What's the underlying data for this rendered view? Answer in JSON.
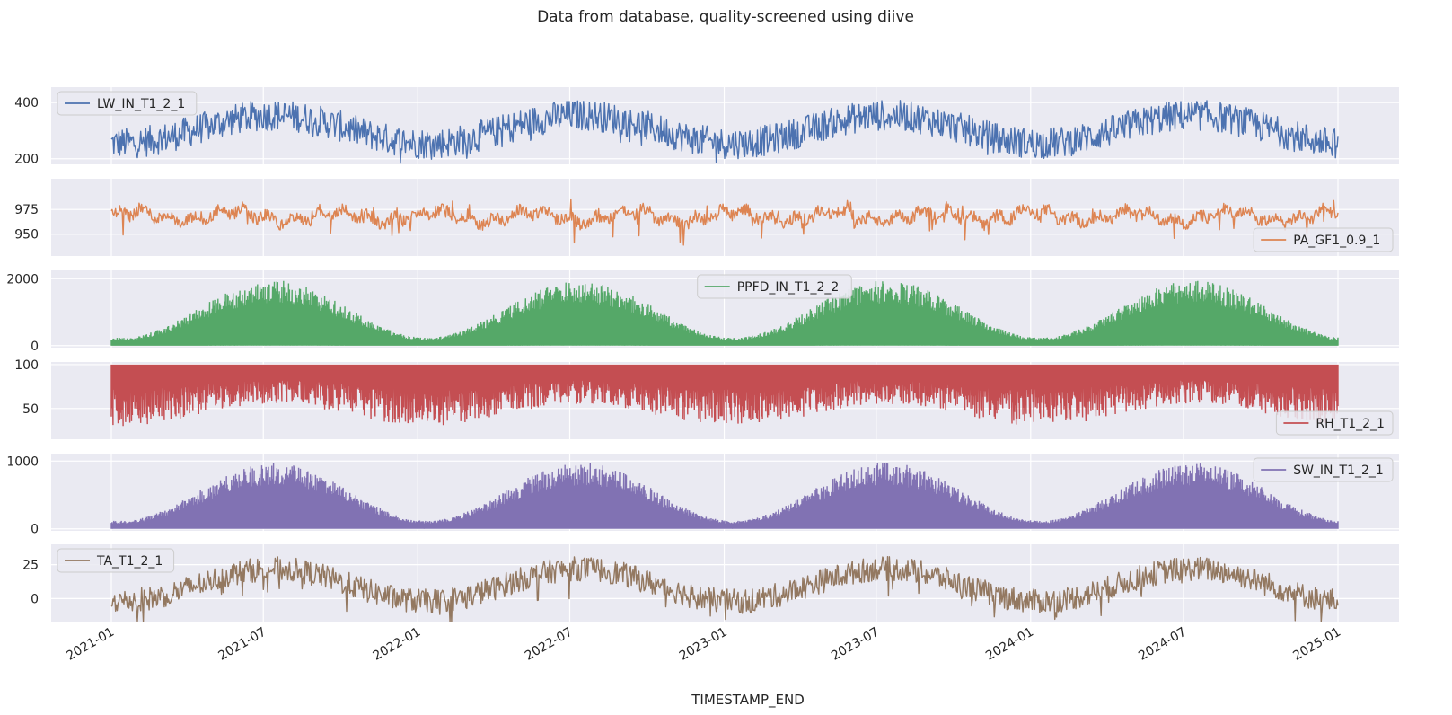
{
  "figure": {
    "title": "Data from database, quality-screened using diive",
    "xlabel": "TIMESTAMP_END",
    "x_ticks": [
      "2021-01",
      "2021-07",
      "2022-01",
      "2022-07",
      "2023-01",
      "2023-07",
      "2024-01",
      "2024-07",
      "2025-01"
    ],
    "background": "#eaeaf2",
    "grid_color": "#ffffff"
  },
  "chart_data": [
    {
      "type": "line",
      "series": [
        {
          "name": "LW_IN_T1_2_1",
          "color": "#4c72b0",
          "pattern": "seasonal_noisy",
          "mean": 305,
          "amplitude": 50,
          "noise": 55,
          "spikes_down": 25
        }
      ],
      "x_range": [
        "2021-01-01",
        "2025-01-01"
      ],
      "ylim": [
        180,
        455
      ],
      "yticks": [
        200,
        400
      ],
      "ytick_labels": [
        "200",
        "400"
      ],
      "legend": "upper left",
      "grid": true
    },
    {
      "type": "line",
      "series": [
        {
          "name": "PA_GF1_0.9_1",
          "color": "#dd8452",
          "pattern": "pressure",
          "mean": 968,
          "amplitude": 0,
          "noise": 6,
          "spikes_down": 20
        }
      ],
      "x_range": [
        "2021-01-01",
        "2025-01-01"
      ],
      "ylim": [
        928,
        1006
      ],
      "yticks": [
        950,
        975
      ],
      "ytick_labels": [
        "950",
        "975"
      ],
      "legend": "lower right",
      "grid": true
    },
    {
      "type": "line",
      "series": [
        {
          "name": "PPFD_IN_T1_2_2",
          "color": "#55a868",
          "pattern": "solar_fill",
          "mean": 0,
          "amplitude": 1950,
          "noise": 0.35,
          "spikes_down": 0
        }
      ],
      "x_range": [
        "2021-01-01",
        "2025-01-01"
      ],
      "ylim": [
        -60,
        2250
      ],
      "yticks": [
        0,
        2000
      ],
      "ytick_labels": [
        "0",
        "2000"
      ],
      "legend": "upper center",
      "grid": true
    },
    {
      "type": "line",
      "series": [
        {
          "name": "RH_T1_2_1",
          "color": "#c44e52",
          "pattern": "rh_fill",
          "mean": 100,
          "amplitude": 50,
          "noise": 0.5,
          "spikes_down": 0
        }
      ],
      "x_range": [
        "2021-01-01",
        "2025-01-01"
      ],
      "ylim": [
        15,
        103
      ],
      "yticks": [
        50,
        100
      ],
      "ytick_labels": [
        "50",
        "100"
      ],
      "legend": "lower right",
      "grid": true
    },
    {
      "type": "line",
      "series": [
        {
          "name": "SW_IN_T1_2_1",
          "color": "#8172b3",
          "pattern": "solar_fill",
          "mean": 0,
          "amplitude": 980,
          "noise": 0.35,
          "spikes_down": 0
        }
      ],
      "x_range": [
        "2021-01-01",
        "2025-01-01"
      ],
      "ylim": [
        -30,
        1110
      ],
      "yticks": [
        0,
        1000
      ],
      "ytick_labels": [
        "0",
        "1000"
      ],
      "legend": "upper right",
      "grid": true
    },
    {
      "type": "line",
      "series": [
        {
          "name": "TA_T1_2_1",
          "color": "#937860",
          "pattern": "seasonal_noisy",
          "mean": 10,
          "amplitude": 12,
          "noise": 9,
          "spikes_down": 10
        }
      ],
      "x_range": [
        "2021-01-01",
        "2025-01-01"
      ],
      "ylim": [
        -17,
        40
      ],
      "yticks": [
        0,
        25
      ],
      "ytick_labels": [
        "0",
        "25"
      ],
      "legend": "upper left",
      "grid": true
    }
  ]
}
